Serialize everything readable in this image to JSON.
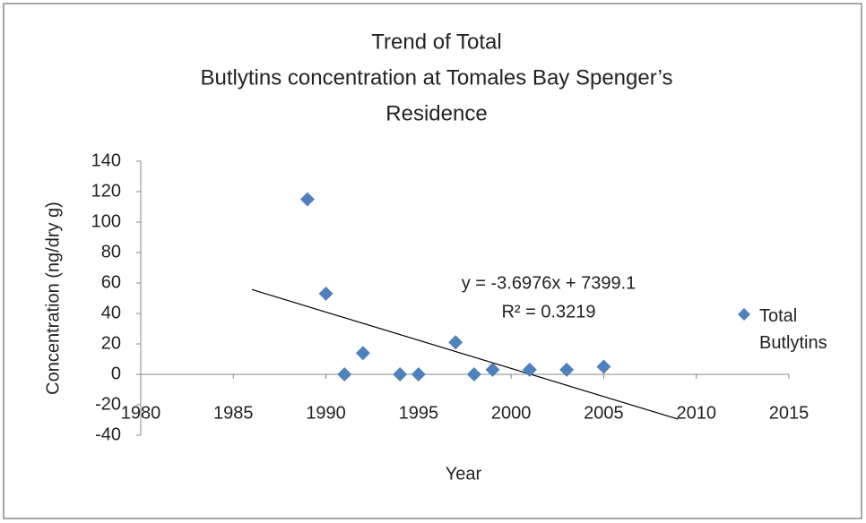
{
  "chart_data": {
    "type": "scatter",
    "title": [
      "Trend of Total",
      "Butlytins concentration at Tomales Bay Spenger’s",
      "Residence"
    ],
    "x_label": "Year",
    "y_label": "Concentration (ng/dry g)",
    "xlim": [
      1980,
      2015
    ],
    "xticks": [
      1980,
      1985,
      1990,
      1995,
      2000,
      2005,
      2010,
      2015
    ],
    "ylim": [
      -40,
      140
    ],
    "yticks": [
      -40,
      -20,
      0,
      20,
      40,
      60,
      80,
      100,
      120,
      140
    ],
    "series": [
      {
        "name": "Total Butlytins",
        "color": "#4f81bd",
        "x": [
          1989,
          1990,
          1991,
          1992,
          1994,
          1995,
          1997,
          1998,
          1999,
          2001,
          2003,
          2005
        ],
        "values": [
          115,
          53,
          0,
          14,
          0,
          0,
          21,
          0,
          3,
          3,
          3,
          5
        ]
      }
    ],
    "trendline": {
      "equation": "y = -3.6976x + 7399.1",
      "r_squared": "R² = 0.3219",
      "x": [
        1986,
        2009
      ],
      "values": [
        55.7,
        -29.4
      ],
      "color": "#000000"
    },
    "legend": "right"
  }
}
